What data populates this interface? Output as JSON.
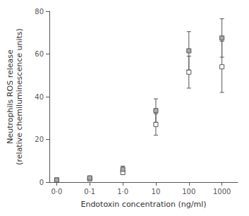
{
  "chart_data": {
    "type": "scatter",
    "x": [
      0.01,
      0.1,
      1.0,
      10,
      100,
      1000
    ],
    "series": [
      {
        "values": [
          1.0,
          2.0,
          6.0,
          33.5,
          61.5,
          67.5
        ],
        "yerr": [
          0.3,
          0.5,
          1.5,
          5.5,
          9.0,
          9.0
        ],
        "color": "#aaaaaa",
        "marker": "square"
      },
      {
        "values": [
          1.0,
          1.5,
          4.5,
          27.0,
          51.5,
          54.0
        ],
        "yerr": [
          0.3,
          0.4,
          1.0,
          5.0,
          7.5,
          12.0
        ],
        "color": "#ffffff",
        "marker": "square"
      }
    ],
    "xlabel": "Endotoxin concentration (ng/ml)",
    "ylabel": "Neutrophils ROS release\n(relative chemiluminescence units)",
    "log": "x",
    "xlim": [
      0.006,
      3000
    ],
    "xticks": [
      {
        "value": 0.01,
        "label": "0·0"
      },
      {
        "value": 0.1,
        "label": "0·1"
      },
      {
        "value": 1.0,
        "label": "1·0"
      },
      10,
      100,
      1000
    ],
    "ylim": [
      0,
      80
    ],
    "yticks": [
      0,
      20,
      40,
      60,
      80
    ],
    "grid": false
  }
}
